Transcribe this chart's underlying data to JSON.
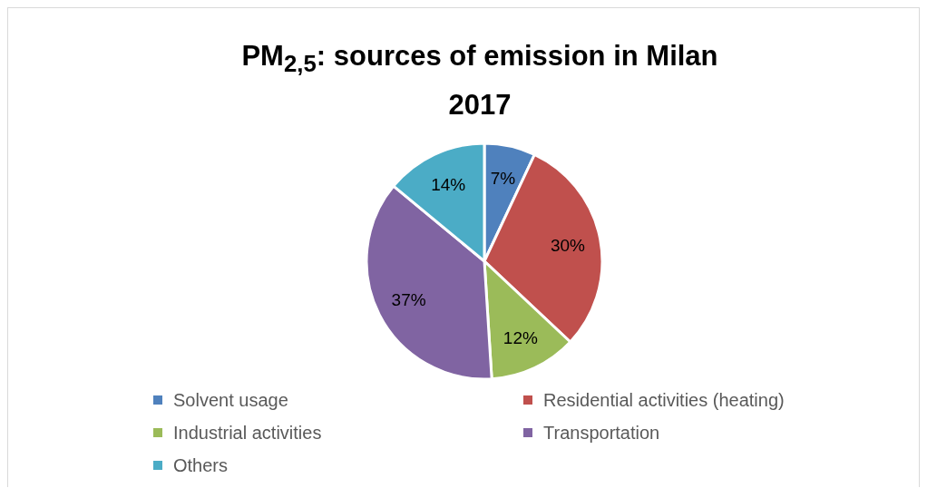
{
  "chart_data": {
    "type": "pie",
    "title": "PM$_{2,5}$: sources of emission in Milan 2017",
    "categories": [
      "Solvent usage",
      "Residential activities (heating)",
      "Industrial activities",
      "Transportation",
      "Others"
    ],
    "values": [
      7,
      30,
      12,
      37,
      14
    ],
    "colors": [
      "#4f81bd",
      "#c0504d",
      "#9bbb59",
      "#8064a2",
      "#4bacc6"
    ],
    "value_labels": [
      "7%",
      "30%",
      "12%",
      "37%",
      "14%"
    ],
    "legend": "bottom"
  }
}
